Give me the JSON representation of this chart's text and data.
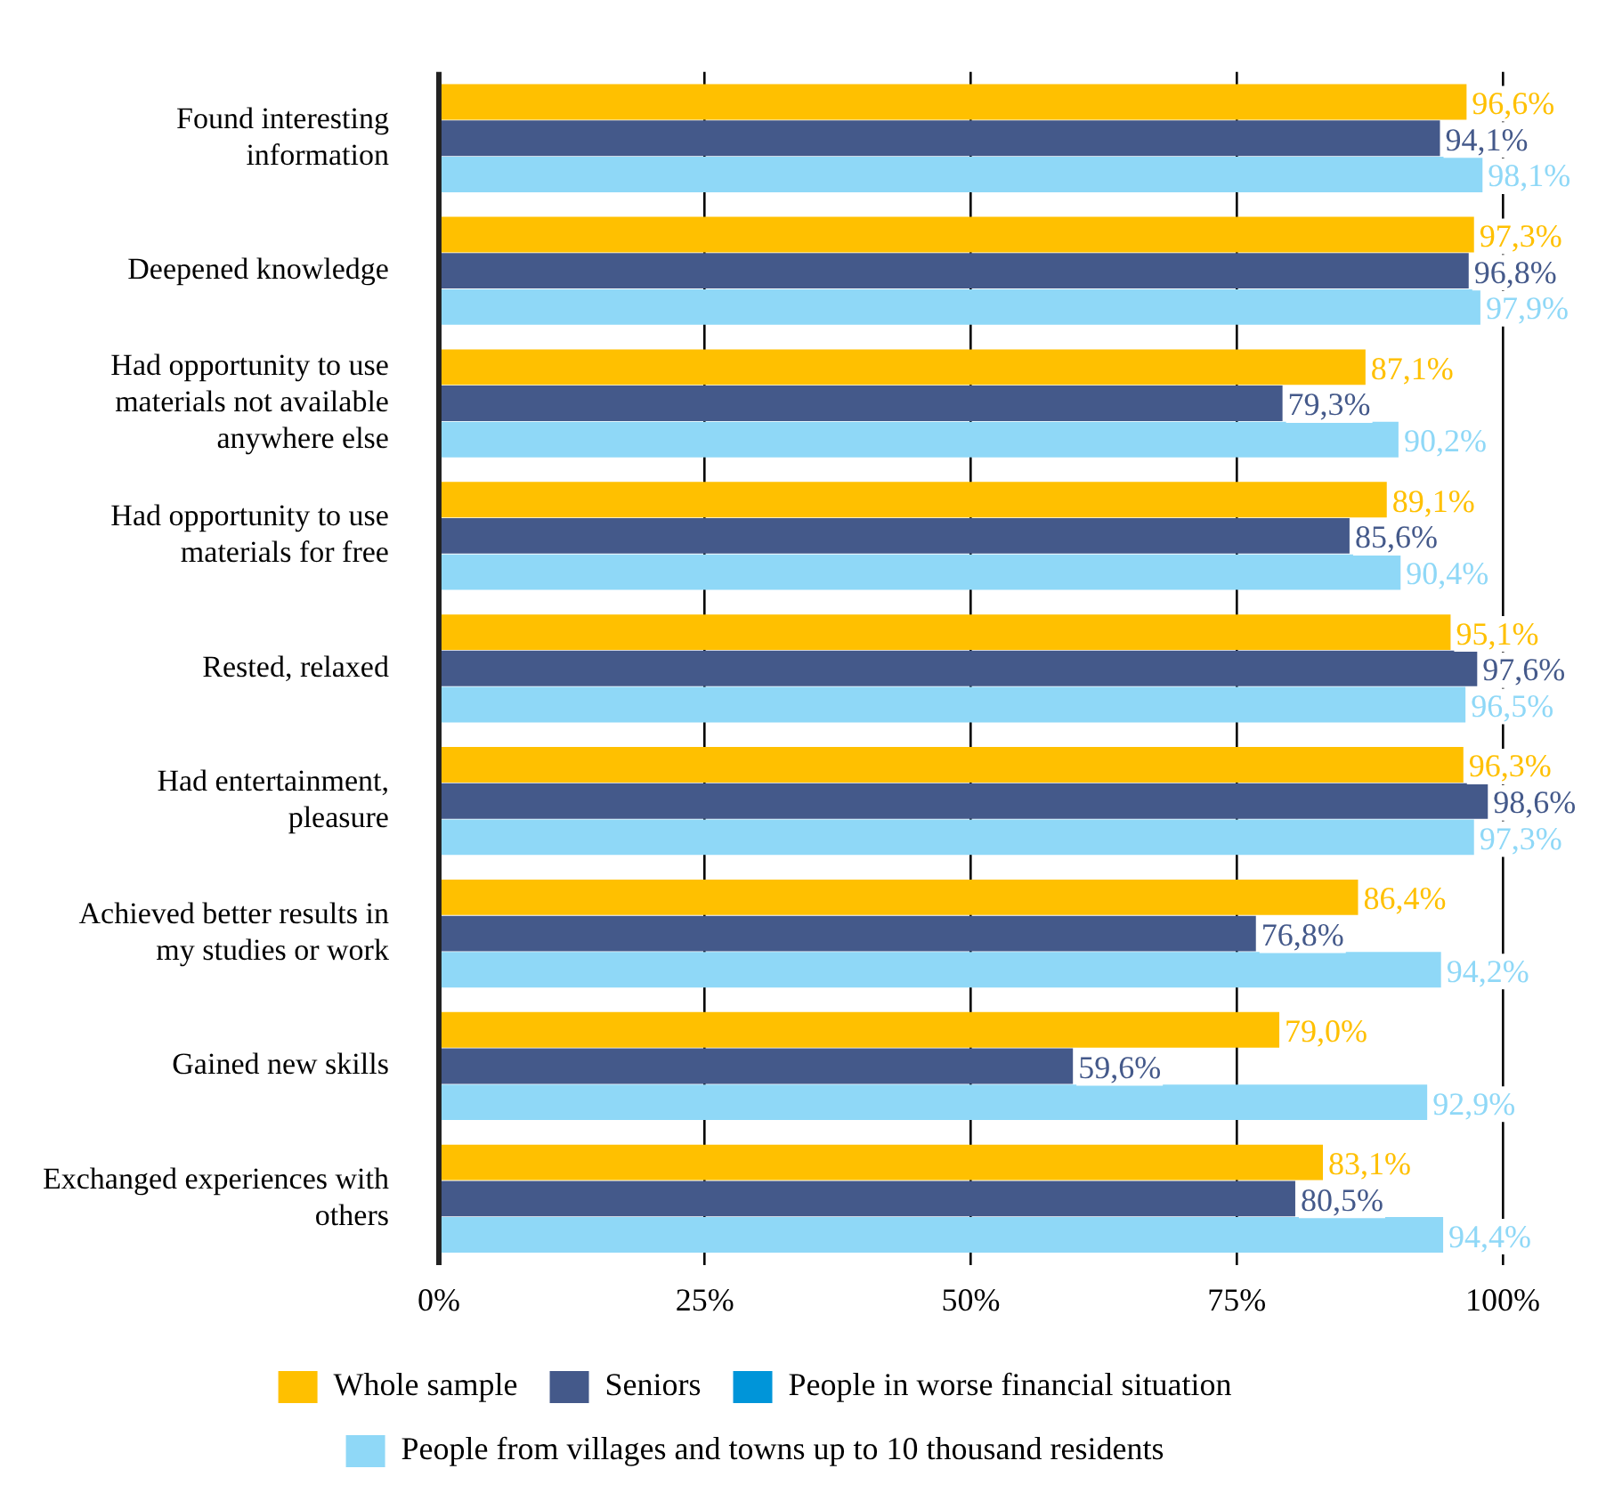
{
  "chart_data": {
    "type": "bar",
    "orientation": "horizontal",
    "categories": [
      "Found interesting information",
      "Deepened knowledge",
      "Had opportunity to use materials not available anywhere else",
      "Had opportunity to use materials for free",
      "Rested, relaxed",
      "Had entertainment, pleasure",
      "Achieved better results in my studies or work",
      "Gained new skills",
      "Exchanged experiences with others"
    ],
    "series": [
      {
        "name": "Whole sample",
        "color": "#ffc000",
        "values": [
          96.6,
          97.3,
          87.1,
          89.1,
          95.1,
          96.3,
          86.4,
          79.0,
          83.1
        ],
        "value_labels": [
          "96,6%",
          "97,3%",
          "87,1%",
          "89,1%",
          "95,1%",
          "96,3%",
          "86,4%",
          "79,0%",
          "83,1%"
        ]
      },
      {
        "name": "Seniors",
        "color": "#44598a",
        "values": [
          94.1,
          96.8,
          79.3,
          85.6,
          97.6,
          98.6,
          76.8,
          59.6,
          80.5
        ],
        "value_labels": [
          "94,1%",
          "96,8%",
          "79,3%",
          "85,6%",
          "97,6%",
          "98,6%",
          "76,8%",
          "59,6%",
          "80,5%"
        ]
      },
      {
        "name": "People in worse financial situation",
        "color": "#0095d9",
        "values": [
          null,
          null,
          null,
          null,
          null,
          null,
          null,
          null,
          null
        ]
      },
      {
        "name": "People from villages and towns up to 10 thousand residents",
        "color": "#8fd8f7",
        "values": [
          98.1,
          97.9,
          90.2,
          90.4,
          96.5,
          97.3,
          94.2,
          92.9,
          94.4
        ],
        "value_labels": [
          "98,1%",
          "97,9%",
          "90,2%",
          "90,4%",
          "96,5%",
          "97,3%",
          "94,2%",
          "92,9%",
          "94,4%"
        ]
      }
    ],
    "xlim": [
      0,
      100
    ],
    "xticks": [
      {
        "value": 0,
        "label": "0%"
      },
      {
        "value": 25,
        "label": "25%"
      },
      {
        "value": 50,
        "label": "50%"
      },
      {
        "value": 75,
        "label": "75%"
      },
      {
        "value": 100,
        "label": "100%"
      }
    ],
    "grid": "x",
    "legend": "bottom"
  }
}
